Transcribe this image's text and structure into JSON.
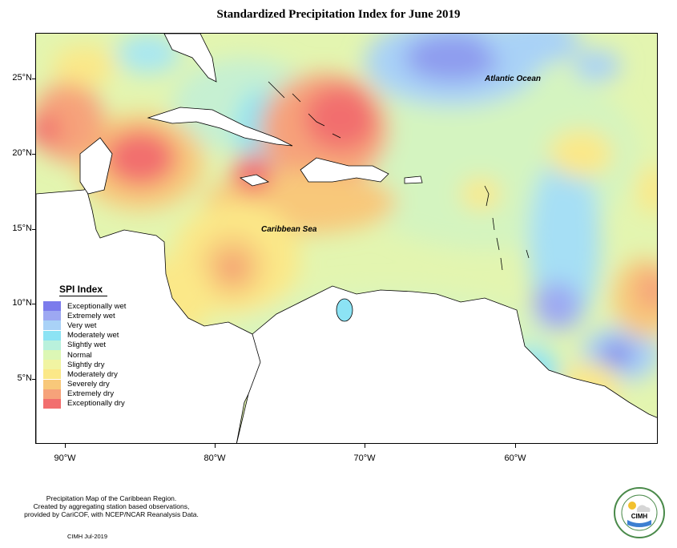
{
  "title": "Standardized Precipitation Index for June 2019",
  "axes": {
    "lat_ticks": [
      "25°N",
      "20°N",
      "15°N",
      "10°N",
      "5°N"
    ],
    "lon_ticks": [
      "90°W",
      "80°W",
      "70°W",
      "60°W"
    ]
  },
  "map_labels": {
    "atlantic": "Atlantic Ocean",
    "caribbean": "Caribbean Sea"
  },
  "legend": {
    "title": "SPI Index",
    "items": [
      {
        "label": "Exceptionally wet",
        "color": "#7b7bec"
      },
      {
        "label": "Extremely wet",
        "color": "#9da8f2"
      },
      {
        "label": "Very wet",
        "color": "#a9d2f7"
      },
      {
        "label": "Moderately wet",
        "color": "#8ce3f4"
      },
      {
        "label": "Slightly wet",
        "color": "#b9f1dc"
      },
      {
        "label": "Normal",
        "color": "#dcf7b5"
      },
      {
        "label": "Slightly dry",
        "color": "#f1f4a2"
      },
      {
        "label": "Moderately dry",
        "color": "#fbe888"
      },
      {
        "label": "Severely dry",
        "color": "#f8c87a"
      },
      {
        "label": "Extremely dry",
        "color": "#f6a27a"
      },
      {
        "label": "Exceptionally dry",
        "color": "#f26e6e"
      }
    ]
  },
  "footer": {
    "line1": "Precipitation Map of the Caribbean Region.",
    "line2": "Created by aggregating station based observations,",
    "line3": "provided by CariCOF, with NCEP/NCAR Reanalysis Data.",
    "credit": "CIMH Jul-2019"
  },
  "logo": {
    "text": "CIMH"
  }
}
